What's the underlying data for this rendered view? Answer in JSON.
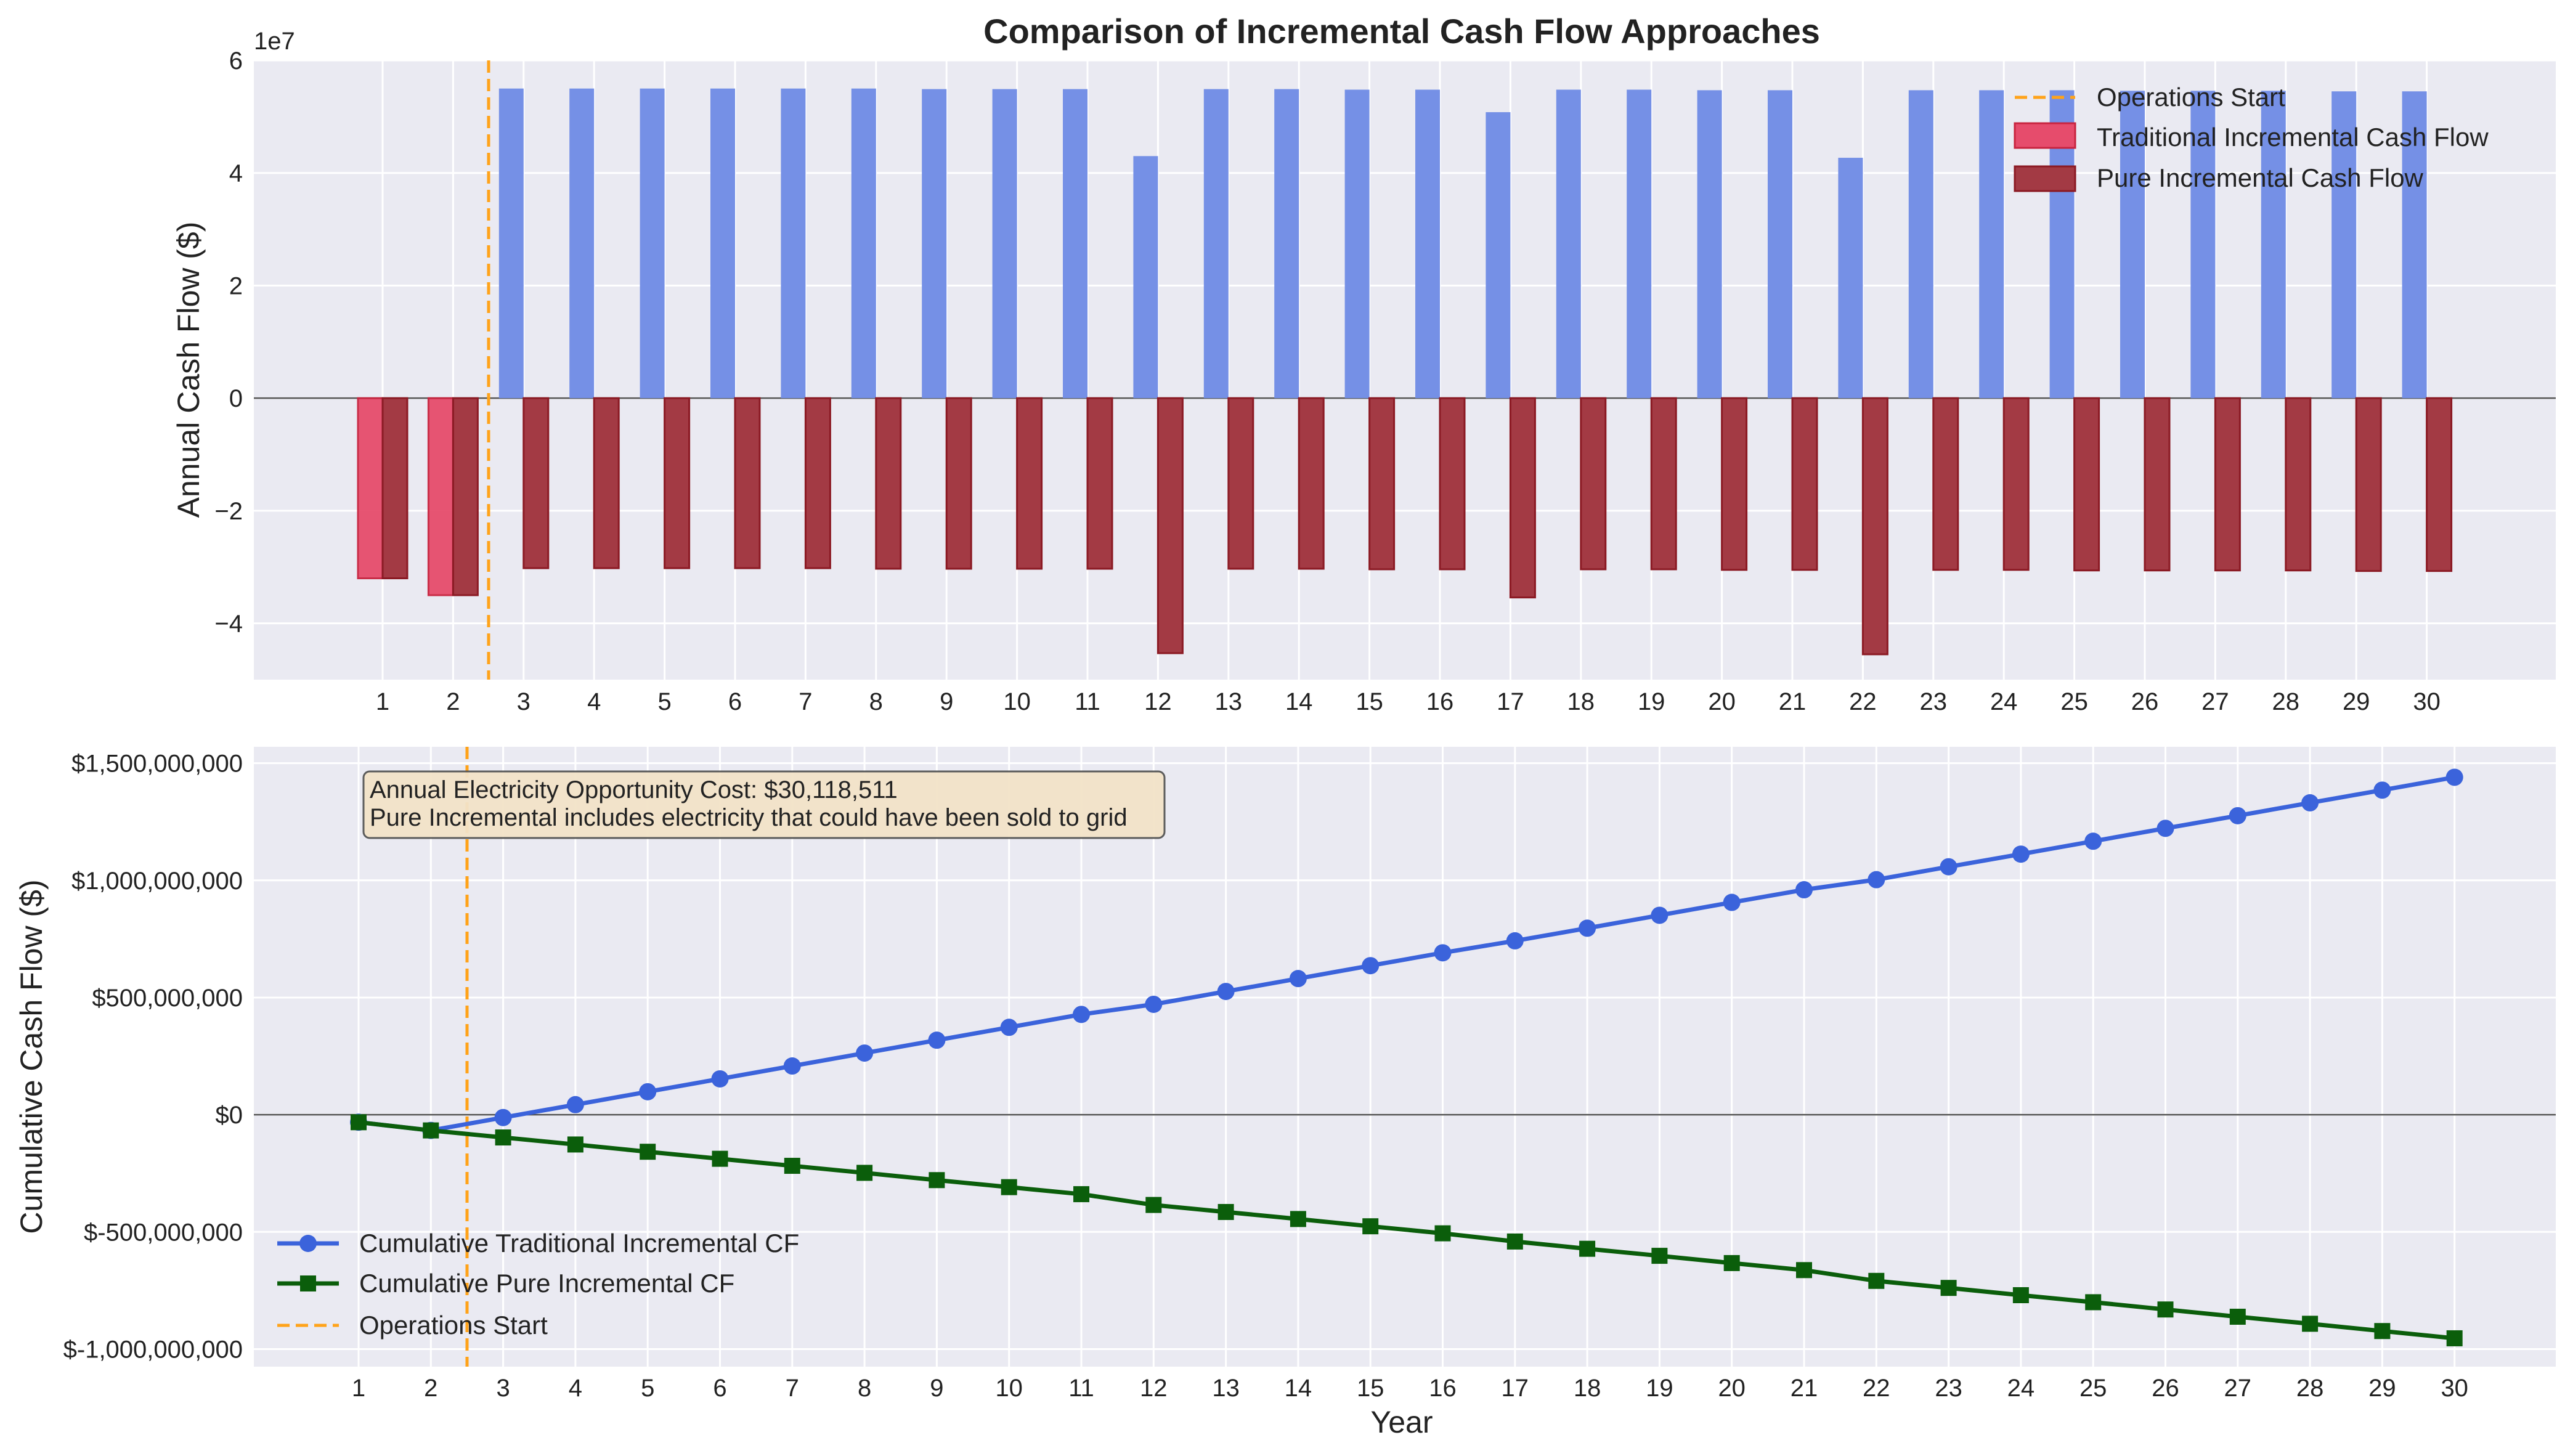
{
  "chart_data": [
    {
      "type": "bar",
      "title": "Comparison of Incremental Cash Flow Approaches",
      "xlabel": "",
      "ylabel": "Annual Cash Flow ($)",
      "y_scale_label": "1e7",
      "ylim": [
        -50000000,
        60000000
      ],
      "y_ticks": [
        -40000000,
        -20000000,
        0,
        20000000,
        40000000,
        60000000
      ],
      "y_tick_labels": [
        "−4",
        "−2",
        "0",
        "2",
        "4",
        "6"
      ],
      "categories": [
        1,
        2,
        3,
        4,
        5,
        6,
        7,
        8,
        9,
        10,
        11,
        12,
        13,
        14,
        15,
        16,
        17,
        18,
        19,
        20,
        21,
        22,
        23,
        24,
        25,
        26,
        27,
        28,
        29,
        30
      ],
      "series": [
        {
          "name": "Traditional Incremental Cash Flow",
          "color": "#E64C6C",
          "values": [
            -32000000,
            -35000000,
            55000000,
            55000000,
            55000000,
            55000000,
            55000000,
            55000000,
            54900000,
            54900000,
            54900000,
            43000000,
            54900000,
            54900000,
            54800000,
            54800000,
            50800000,
            54800000,
            54800000,
            54700000,
            54700000,
            42700000,
            54700000,
            54700000,
            54700000,
            54600000,
            54600000,
            54600000,
            54500000,
            54500000
          ]
        },
        {
          "name": "Pure Incremental Cash Flow",
          "color": "#8B1A24",
          "values": [
            -32000000,
            -35000000,
            -30200000,
            -30200000,
            -30200000,
            -30200000,
            -30200000,
            -30300000,
            -30300000,
            -30300000,
            -30300000,
            -45300000,
            -30300000,
            -30300000,
            -30400000,
            -30400000,
            -35400000,
            -30400000,
            -30400000,
            -30500000,
            -30500000,
            -45500000,
            -30500000,
            -30500000,
            -30600000,
            -30600000,
            -30600000,
            -30600000,
            -30700000,
            -30700000
          ]
        }
      ],
      "operations_start_x": 2.5,
      "legend": {
        "position": "top-right",
        "entries": [
          "Operations Start",
          "Traditional Incremental Cash Flow",
          "Pure Incremental Cash Flow"
        ]
      },
      "grid": true
    },
    {
      "type": "line",
      "title": "",
      "xlabel": "Year",
      "ylabel": "Cumulative Cash Flow ($)",
      "ylim": [
        -1075000000,
        1570000000
      ],
      "y_ticks": [
        -1000000000,
        -500000000,
        0,
        500000000,
        1000000000,
        1500000000
      ],
      "y_tick_labels": [
        "$-1,000,000,000",
        "$-500,000,000",
        "$0",
        "$500,000,000",
        "$1,000,000,000",
        "$1,500,000,000"
      ],
      "x": [
        1,
        2,
        3,
        4,
        5,
        6,
        7,
        8,
        9,
        10,
        11,
        12,
        13,
        14,
        15,
        16,
        17,
        18,
        19,
        20,
        21,
        22,
        23,
        24,
        25,
        26,
        27,
        28,
        29,
        30
      ],
      "series": [
        {
          "name": "Cumulative Traditional Incremental CF",
          "color": "#3B63DB",
          "marker": "circle",
          "values": [
            -32000000,
            -67000000,
            -12000000,
            43000000,
            98000000,
            153000000,
            208000000,
            263000000,
            318000000,
            373000000,
            428000000,
            471000000,
            526000000,
            581000000,
            636000000,
            691000000,
            742000000,
            796000000,
            851000000,
            906000000,
            960000000,
            1003000000,
            1058000000,
            1112000000,
            1167000000,
            1222000000,
            1276000000,
            1331000000,
            1385000000,
            1440000000
          ]
        },
        {
          "name": "Cumulative Pure Incremental CF",
          "color": "#0B5E0B",
          "marker": "square",
          "values": [
            -32000000,
            -67000000,
            -97000000,
            -127000000,
            -158000000,
            -188000000,
            -218000000,
            -248000000,
            -279000000,
            -309000000,
            -339000000,
            -385000000,
            -415000000,
            -445000000,
            -476000000,
            -506000000,
            -541000000,
            -572000000,
            -602000000,
            -633000000,
            -663000000,
            -709000000,
            -739000000,
            -770000000,
            -800000000,
            -831000000,
            -862000000,
            -892000000,
            -923000000,
            -954000000
          ]
        }
      ],
      "operations_start_x": 2.5,
      "annotation": [
        "Annual Electricity Opportunity Cost: $30,118,511",
        "Pure Incremental includes electricity that could have been sold to grid"
      ],
      "legend": {
        "position": "lower-left",
        "entries": [
          "Cumulative Traditional Incremental CF",
          "Cumulative Pure Incremental CF",
          "Operations Start"
        ]
      },
      "grid": true
    }
  ]
}
